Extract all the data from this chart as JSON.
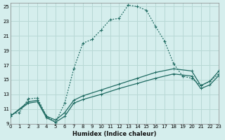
{
  "xlabel": "Humidex (Indice chaleur)",
  "bg_color": "#d5eeed",
  "grid_color": "#b8d8d5",
  "line_color": "#1f6b62",
  "xlim": [
    0,
    23
  ],
  "ylim": [
    9,
    25.5
  ],
  "xticks": [
    0,
    1,
    2,
    3,
    4,
    5,
    6,
    7,
    8,
    9,
    10,
    11,
    12,
    13,
    14,
    15,
    16,
    17,
    18,
    19,
    20,
    21,
    22,
    23
  ],
  "yticks": [
    9,
    11,
    13,
    15,
    17,
    19,
    21,
    23,
    25
  ],
  "curve1_x": [
    0,
    1,
    2,
    3,
    4,
    5,
    6,
    7,
    8,
    9,
    10,
    11,
    12,
    13,
    14,
    15,
    16,
    17,
    18,
    19,
    20,
    21,
    22,
    23
  ],
  "curve1_y": [
    10.3,
    10.5,
    12.4,
    12.5,
    10.0,
    9.2,
    11.8,
    16.5,
    20.0,
    20.5,
    21.8,
    23.2,
    23.4,
    25.2,
    25.0,
    24.5,
    22.3,
    20.3,
    17.2,
    15.5,
    15.2,
    14.2,
    14.8,
    15.8
  ],
  "curve2_x": [
    0,
    2,
    3,
    4,
    5,
    6,
    7,
    8,
    10,
    12,
    14,
    16,
    18,
    20,
    21,
    22,
    23
  ],
  "curve2_y": [
    10.0,
    12.0,
    12.2,
    10.0,
    9.5,
    10.5,
    12.2,
    12.8,
    13.6,
    14.4,
    15.2,
    16.0,
    16.5,
    16.2,
    14.2,
    14.8,
    16.2
  ],
  "curve3_x": [
    0,
    2,
    3,
    4,
    5,
    6,
    7,
    8,
    10,
    12,
    14,
    16,
    18,
    20,
    21,
    22,
    23
  ],
  "curve3_y": [
    10.0,
    11.8,
    12.0,
    9.8,
    9.2,
    10.0,
    11.8,
    12.3,
    13.0,
    13.8,
    14.5,
    15.2,
    15.8,
    15.5,
    13.8,
    14.3,
    15.6
  ]
}
